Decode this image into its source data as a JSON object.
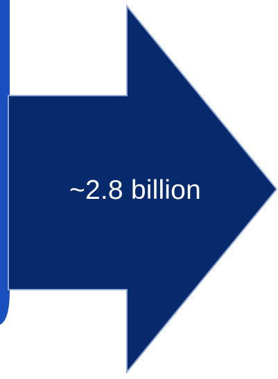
{
  "diagram": {
    "arrow_label": "~2.8 billion",
    "colors": {
      "arrow_fill": "#062A6B",
      "arrow_stroke": "#8FA8D6",
      "left_box_fill": "#1A4FC0",
      "background": "#FFFFFF"
    }
  }
}
